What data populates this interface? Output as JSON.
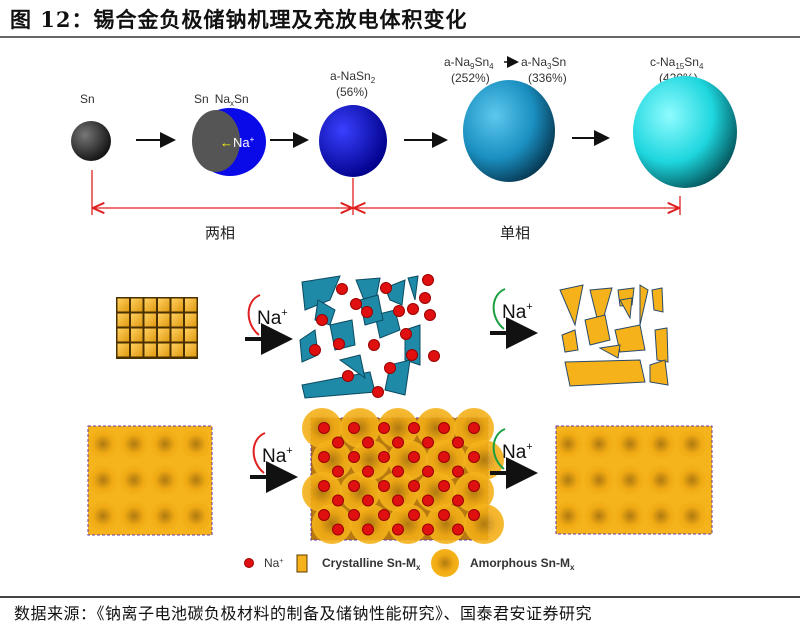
{
  "figure": {
    "title": "图 12：锡合金负极储钠机理及充放电体积变化",
    "source": "数据来源：《钠离子电池碳负极材料的制备及储钠性能研究》、国泰君安证券研究"
  },
  "top_row": {
    "stages": [
      {
        "label": "Sn"
      },
      {
        "label_a": "Sn",
        "label_b": "Na",
        "label_b_sub": "x",
        "label_b_tail": "Sn",
        "inner": "Na",
        "inner_sup": "+"
      },
      {
        "label": "a-NaSn",
        "label_sub": "2",
        "percent": "(56%)"
      },
      {
        "label_1": "a-Na",
        "label_1_sub1": "9",
        "label_1_mid": "Sn",
        "label_1_sub2": "4",
        "percent_1": "(252%)",
        "label_2": "a-Na",
        "label_2_sub": "3",
        "label_2_tail": "Sn",
        "percent_2": "(336%)"
      },
      {
        "label": "c-Na",
        "label_sub1": "15",
        "label_mid": "Sn",
        "label_sub2": "4",
        "percent": "(420%)"
      }
    ],
    "phases": {
      "two_phase": "两相",
      "single_phase": "单相"
    }
  },
  "mechanism": {
    "ion": "Na",
    "ion_sup": "+"
  },
  "legend": {
    "na": "Na",
    "na_sup": "+",
    "crystalline": "Crystalline Sn-M",
    "crystalline_sub": "x",
    "amorphous": "Amorphous Sn-M",
    "amorphous_sub": "x"
  },
  "colors": {
    "sn": "#3a3a3a",
    "nasn2": "#0a10d8",
    "na9sn4": "#1a8fc0",
    "na15sn4": "#20d8e0",
    "na_ion": "#e01010",
    "crystalline": "#f5b21a",
    "shard_blue": "#1e8aa8",
    "phase_line": "#e02020"
  }
}
